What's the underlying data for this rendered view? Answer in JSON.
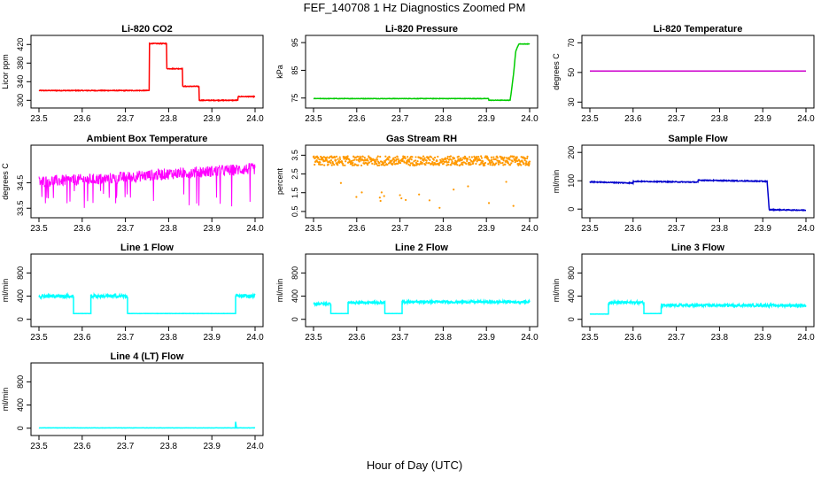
{
  "figure": {
    "title": "FEF_140708 1 Hz Diagnostics Zoomed PM",
    "xlabel": "Hour of Day (UTC)"
  },
  "chart_data": [
    {
      "type": "line",
      "title": "Li-820 CO2",
      "ylabel": "Licor ppm",
      "color": "#ff0000",
      "xlim": [
        23.5,
        24.0
      ],
      "ylim": [
        293,
        430
      ],
      "xticks": [
        "23.5",
        "23.6",
        "23.7",
        "23.8",
        "23.9",
        "24.0"
      ],
      "yticks": [
        300,
        340,
        380,
        420
      ],
      "series": [
        {
          "style": "line",
          "x": [
            23.5,
            23.755,
            23.755,
            23.795,
            23.795,
            23.832,
            23.832,
            23.87,
            23.87,
            23.96,
            23.96,
            24.0
          ],
          "y": [
            321,
            321,
            422,
            422,
            368,
            368,
            330,
            330,
            300,
            300,
            308,
            308
          ],
          "noise": 1.5
        }
      ]
    },
    {
      "type": "line",
      "title": "Li-820 Pressure",
      "ylabel": "kPa",
      "color": "#00cc00",
      "xlim": [
        23.5,
        24.0
      ],
      "ylim": [
        73,
        96
      ],
      "xticks": [
        "23.5",
        "23.6",
        "23.7",
        "23.8",
        "23.9",
        "24.0"
      ],
      "yticks": [
        75,
        85,
        95
      ],
      "series": [
        {
          "style": "line",
          "x": [
            23.5,
            23.905,
            23.905,
            23.955,
            23.963,
            23.968,
            23.975,
            24.0
          ],
          "y": [
            74.8,
            74.8,
            74.2,
            74.2,
            84,
            92,
            94.5,
            94.5
          ],
          "noise": 0.15
        }
      ]
    },
    {
      "type": "line",
      "title": "Li-820 Temperature",
      "ylabel": "degrees C",
      "color": "#cc00cc",
      "xlim": [
        23.5,
        24.0
      ],
      "ylim": [
        29,
        72
      ],
      "xticks": [
        "23.5",
        "23.6",
        "23.7",
        "23.8",
        "23.9",
        "24.0"
      ],
      "yticks": [
        30,
        50,
        70
      ],
      "series": [
        {
          "style": "line",
          "x": [
            23.5,
            24.0
          ],
          "y": [
            51,
            51
          ],
          "noise": 0
        }
      ]
    },
    {
      "type": "line",
      "title": "Ambient Box Temperature",
      "ylabel": "degrees C",
      "color": "#ff00ff",
      "xlim": [
        23.5,
        24.0
      ],
      "ylim": [
        33.3,
        35.8
      ],
      "xticks": [
        "23.5",
        "23.6",
        "23.7",
        "23.8",
        "23.9",
        "24.0"
      ],
      "yticks": [
        33.5,
        34.5
      ],
      "series": [
        {
          "style": "noisy",
          "x": [
            23.5,
            23.65,
            23.8,
            24.0
          ],
          "y": [
            34.55,
            34.65,
            34.85,
            35.05
          ],
          "noise": 0.45,
          "dips": [
            33.4,
            33.9,
            33.6
          ]
        }
      ]
    },
    {
      "type": "scatter",
      "title": "Gas Stream RH",
      "ylabel": "percent",
      "color": "#ff9900",
      "xlim": [
        23.5,
        24.0
      ],
      "ylim": [
        0.4,
        3.8
      ],
      "xticks": [
        "23.5",
        "23.6",
        "23.7",
        "23.8",
        "23.9",
        "24.0"
      ],
      "yticks": [
        0.5,
        1.5,
        2.5,
        3.5
      ],
      "series": [
        {
          "style": "noisy",
          "x": [
            23.5,
            24.0
          ],
          "y": [
            3.2,
            3.2
          ],
          "noise": 0.5,
          "dips": [
            0.5,
            0.8,
            1.3
          ]
        }
      ]
    },
    {
      "type": "line",
      "title": "Sample Flow",
      "ylabel": "ml/min",
      "color": "#0000cc",
      "xlim": [
        23.5,
        24.0
      ],
      "ylim": [
        -15,
        210
      ],
      "xticks": [
        "23.5",
        "23.6",
        "23.7",
        "23.8",
        "23.9",
        "24.0"
      ],
      "yticks": [
        0,
        100,
        200
      ],
      "series": [
        {
          "style": "line",
          "x": [
            23.5,
            23.6,
            23.6,
            23.7,
            23.7,
            23.75,
            23.75,
            23.91,
            23.915,
            24.0
          ],
          "y": [
            96,
            92,
            98,
            96,
            96,
            95,
            102,
            98,
            -2,
            -4
          ],
          "noise": 3
        }
      ]
    },
    {
      "type": "line",
      "title": "Line 1 Flow",
      "ylabel": "ml/min",
      "color": "#00ffff",
      "xlim": [
        23.5,
        24.0
      ],
      "ylim": [
        -50,
        1050
      ],
      "xticks": [
        "23.5",
        "23.6",
        "23.7",
        "23.8",
        "23.9",
        "24.0"
      ],
      "yticks": [
        0,
        400,
        800
      ],
      "series": [
        {
          "style": "blocks",
          "blocks": [
            [
              23.5,
              23.58,
              400
            ],
            [
              23.58,
              23.62,
              100
            ],
            [
              23.62,
              23.705,
              400
            ],
            [
              23.705,
              23.955,
              100
            ],
            [
              23.955,
              24.0,
              400
            ]
          ],
          "noise": 60
        }
      ]
    },
    {
      "type": "line",
      "title": "Line 2 Flow",
      "ylabel": "ml/min",
      "color": "#00ffff",
      "xlim": [
        23.5,
        24.0
      ],
      "ylim": [
        -50,
        1050
      ],
      "xticks": [
        "23.5",
        "23.6",
        "23.7",
        "23.8",
        "23.9",
        "24.0"
      ],
      "yticks": [
        0,
        400,
        800
      ],
      "series": [
        {
          "style": "blocks",
          "blocks": [
            [
              23.5,
              23.54,
              270
            ],
            [
              23.54,
              23.58,
              100
            ],
            [
              23.58,
              23.665,
              290
            ],
            [
              23.665,
              23.705,
              100
            ],
            [
              23.705,
              24.0,
              300
            ]
          ],
          "noise": 40
        }
      ]
    },
    {
      "type": "line",
      "title": "Line 3 Flow",
      "ylabel": "ml/min",
      "color": "#00ffff",
      "xlim": [
        23.5,
        24.0
      ],
      "ylim": [
        -50,
        1050
      ],
      "xticks": [
        "23.5",
        "23.6",
        "23.7",
        "23.8",
        "23.9",
        "24.0"
      ],
      "yticks": [
        0,
        400,
        800
      ],
      "series": [
        {
          "style": "blocks",
          "blocks": [
            [
              23.5,
              23.543,
              90
            ],
            [
              23.543,
              23.625,
              290
            ],
            [
              23.625,
              23.665,
              100
            ],
            [
              23.665,
              24.0,
              240
            ]
          ],
          "noise": 45
        }
      ]
    },
    {
      "type": "line",
      "title": "Line 4 (LT) Flow",
      "ylabel": "ml/min",
      "color": "#00ffff",
      "xlim": [
        23.5,
        24.0
      ],
      "ylim": [
        -50,
        1050
      ],
      "xticks": [
        "23.5",
        "23.6",
        "23.7",
        "23.8",
        "23.9",
        "24.0"
      ],
      "yticks": [
        0,
        400,
        800
      ],
      "series": [
        {
          "style": "line",
          "x": [
            23.5,
            24.0
          ],
          "y": [
            5,
            5
          ],
          "noise": 3,
          "spike": [
            23.955,
            110
          ]
        }
      ]
    }
  ]
}
